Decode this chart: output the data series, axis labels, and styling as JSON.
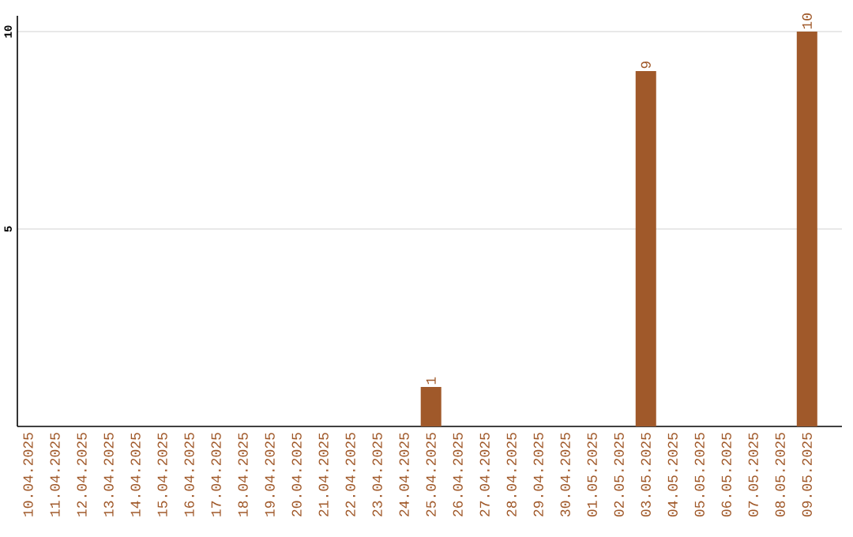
{
  "chart_data": {
    "type": "bar",
    "categories": [
      "10.04.2025",
      "11.04.2025",
      "12.04.2025",
      "13.04.2025",
      "14.04.2025",
      "15.04.2025",
      "16.04.2025",
      "17.04.2025",
      "18.04.2025",
      "19.04.2025",
      "20.04.2025",
      "21.04.2025",
      "22.04.2025",
      "23.04.2025",
      "24.04.2025",
      "25.04.2025",
      "26.04.2025",
      "27.04.2025",
      "28.04.2025",
      "29.04.2025",
      "30.04.2025",
      "01.05.2025",
      "02.05.2025",
      "03.05.2025",
      "04.05.2025",
      "05.05.2025",
      "06.05.2025",
      "07.05.2025",
      "08.05.2025",
      "09.05.2025"
    ],
    "values": [
      0,
      0,
      0,
      0,
      0,
      0,
      0,
      0,
      0,
      0,
      0,
      0,
      0,
      0,
      0,
      1,
      0,
      0,
      0,
      0,
      0,
      0,
      0,
      9,
      0,
      0,
      0,
      0,
      0,
      10
    ],
    "value_labels": [
      null,
      null,
      null,
      null,
      null,
      null,
      null,
      null,
      null,
      null,
      null,
      null,
      null,
      null,
      null,
      "1",
      null,
      null,
      null,
      null,
      null,
      null,
      null,
      "9",
      null,
      null,
      null,
      null,
      null,
      "10"
    ],
    "color": "#a0592a",
    "ylim": [
      0,
      10.4
    ],
    "yticks": [
      5,
      10
    ],
    "grid": "y"
  }
}
